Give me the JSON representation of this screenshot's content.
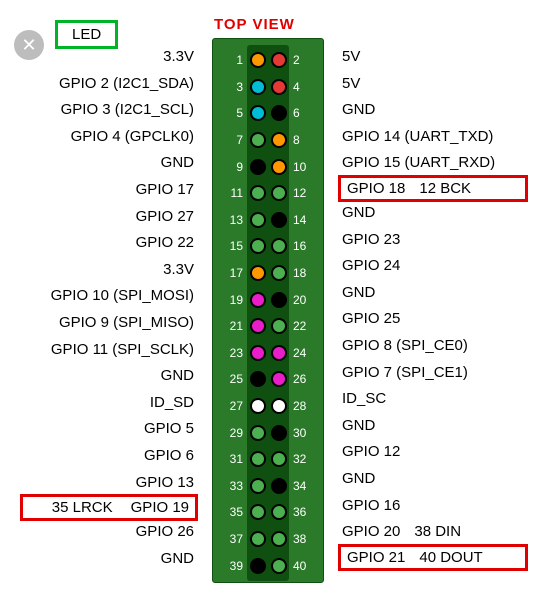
{
  "header": {
    "led_label": "LED",
    "top_view": "TOP VIEW"
  },
  "colors": {
    "orange": "#ff9800",
    "red": "#e53935",
    "cyan": "#00bcd4",
    "black": "#000000",
    "green": "#4caf50",
    "magenta": "#e91ec9",
    "white": "#ffffff",
    "board": "#2a7a2a",
    "strip": "#0f4f0f",
    "highlight_red": "#e00000",
    "highlight_green": "#00b428",
    "pinnum": "#ffffff"
  },
  "rows": [
    {
      "n1": "1",
      "n2": "2",
      "c1": "orange",
      "c2": "red",
      "l": "3.3V",
      "r": "5V"
    },
    {
      "n1": "3",
      "n2": "4",
      "c1": "cyan",
      "c2": "red",
      "l": "GPIO 2 (I2C1_SDA)",
      "r": "5V"
    },
    {
      "n1": "5",
      "n2": "6",
      "c1": "cyan",
      "c2": "black",
      "l": "GPIO 3 (I2C1_SCL)",
      "r": "GND"
    },
    {
      "n1": "7",
      "n2": "8",
      "c1": "green",
      "c2": "orange",
      "l": "GPIO 4 (GPCLK0)",
      "r": "GPIO 14 (UART_TXD)"
    },
    {
      "n1": "9",
      "n2": "10",
      "c1": "black",
      "c2": "orange",
      "l": "GND",
      "r": "GPIO 15 (UART_RXD)"
    },
    {
      "n1": "11",
      "n2": "12",
      "c1": "green",
      "c2": "green",
      "l": "GPIO 17",
      "r": "GPIO 18",
      "r_extra": "12 BCK",
      "r_hl": true
    },
    {
      "n1": "13",
      "n2": "14",
      "c1": "green",
      "c2": "black",
      "l": "GPIO 27",
      "r": "GND"
    },
    {
      "n1": "15",
      "n2": "16",
      "c1": "green",
      "c2": "green",
      "l": "GPIO 22",
      "r": "GPIO 23"
    },
    {
      "n1": "17",
      "n2": "18",
      "c1": "orange",
      "c2": "green",
      "l": "3.3V",
      "r": "GPIO 24"
    },
    {
      "n1": "19",
      "n2": "20",
      "c1": "magenta",
      "c2": "black",
      "l": "GPIO 10 (SPI_MOSI)",
      "r": "GND"
    },
    {
      "n1": "21",
      "n2": "22",
      "c1": "magenta",
      "c2": "green",
      "l": "GPIO 9 (SPI_MISO)",
      "r": "GPIO 25"
    },
    {
      "n1": "23",
      "n2": "24",
      "c1": "magenta",
      "c2": "magenta",
      "l": "GPIO 11 (SPI_SCLK)",
      "r": "GPIO 8 (SPI_CE0)"
    },
    {
      "n1": "25",
      "n2": "26",
      "c1": "black",
      "c2": "magenta",
      "l": "GND",
      "r": "GPIO 7 (SPI_CE1)"
    },
    {
      "n1": "27",
      "n2": "28",
      "c1": "white",
      "c2": "white",
      "l": "ID_SD",
      "r": "ID_SC"
    },
    {
      "n1": "29",
      "n2": "30",
      "c1": "green",
      "c2": "black",
      "l": "GPIO 5",
      "r": "GND"
    },
    {
      "n1": "31",
      "n2": "32",
      "c1": "green",
      "c2": "green",
      "l": "GPIO 6",
      "r": "GPIO 12"
    },
    {
      "n1": "33",
      "n2": "34",
      "c1": "green",
      "c2": "black",
      "l": "GPIO 13",
      "r": "GND"
    },
    {
      "n1": "35",
      "n2": "36",
      "c1": "green",
      "c2": "green",
      "l": "GPIO 19",
      "l_extra_pre": "35 LRCK",
      "l_hl": true,
      "r": "GPIO 16"
    },
    {
      "n1": "37",
      "n2": "38",
      "c1": "green",
      "c2": "green",
      "l": "GPIO 26",
      "r": "GPIO 20",
      "r_extra": "38 DIN"
    },
    {
      "n1": "39",
      "n2": "40",
      "c1": "black",
      "c2": "green",
      "l": "GND",
      "r": "GPIO 21",
      "r_extra": "40 DOUT",
      "r_hl": true
    }
  ]
}
